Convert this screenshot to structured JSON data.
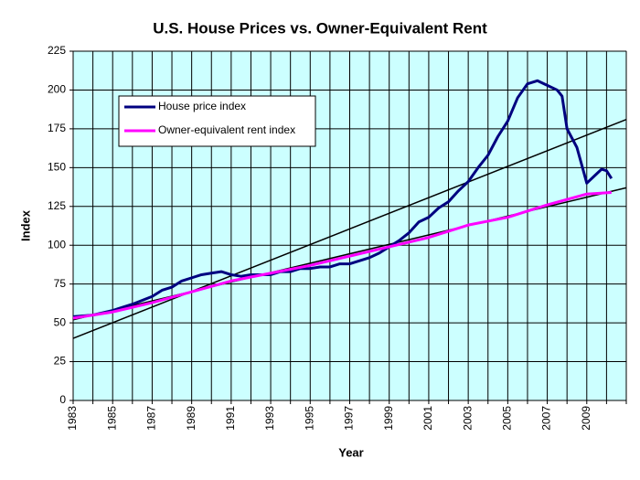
{
  "chart_data": {
    "type": "line",
    "title": "U.S. House Prices vs. Owner-Equivalent Rent",
    "x_label": "Year",
    "y_label": "Index",
    "xlim": [
      1983,
      2011
    ],
    "ylim": [
      0,
      225
    ],
    "xticks": [
      1983,
      1985,
      1987,
      1989,
      1991,
      1993,
      1995,
      1997,
      1999,
      2001,
      2003,
      2005,
      2007,
      2009
    ],
    "xminorticks": [
      1984,
      1986,
      1988,
      1990,
      1992,
      1994,
      1996,
      1998,
      2000,
      2002,
      2004,
      2006,
      2008,
      2010,
      2011
    ],
    "yticks": [
      0,
      25,
      50,
      75,
      100,
      125,
      150,
      175,
      200,
      225
    ],
    "grid": true,
    "background": "#ccffff",
    "legend": "upper left",
    "series": [
      {
        "name": "House price index",
        "color": "#000080",
        "x": [
          1983,
          1984,
          1985,
          1986,
          1987,
          1987.5,
          1988,
          1988.5,
          1989,
          1989.5,
          1990,
          1990.5,
          1991,
          1991.5,
          1992,
          1993,
          1993.5,
          1994,
          1994.5,
          1995,
          1995.5,
          1996,
          1996.5,
          1997,
          1997.5,
          1998,
          1998.5,
          1999,
          1999.5,
          2000,
          2000.5,
          2001,
          2001.5,
          2002,
          2002.5,
          2003,
          2003.5,
          2004,
          2004.5,
          2005,
          2005.5,
          2006,
          2006.5,
          2007,
          2007.5,
          2007.75,
          2008,
          2008.5,
          2009,
          2009.5,
          2009.75,
          2010,
          2010.25
        ],
        "values": [
          54,
          55,
          58,
          62,
          67,
          71,
          73,
          77,
          79,
          81,
          82,
          83,
          81,
          80,
          81,
          81,
          83,
          83,
          85,
          85,
          86,
          86,
          88,
          88,
          90,
          92,
          95,
          99,
          103,
          108,
          115,
          118,
          124,
          128,
          135,
          141,
          150,
          158,
          170,
          180,
          195,
          204,
          206,
          203,
          200,
          196,
          175,
          163,
          140,
          146,
          149,
          148,
          143
        ]
      },
      {
        "name": "Owner-equivalent rent index",
        "color": "#ff00ff",
        "x": [
          1983,
          1985,
          1987,
          1989,
          1991,
          1993,
          1995,
          1997,
          1999,
          2001,
          2003,
          2005,
          2007,
          2009,
          2010.25
        ],
        "values": [
          53,
          57,
          63,
          70,
          77,
          82,
          87,
          93,
          99,
          105,
          113,
          118,
          126,
          133,
          134
        ]
      }
    ],
    "trendlines": [
      {
        "color": "#000000",
        "x": [
          1983,
          2011
        ],
        "values": [
          40,
          181
        ]
      },
      {
        "color": "#000000",
        "x": [
          1983,
          2011
        ],
        "values": [
          52,
          137
        ]
      }
    ]
  }
}
